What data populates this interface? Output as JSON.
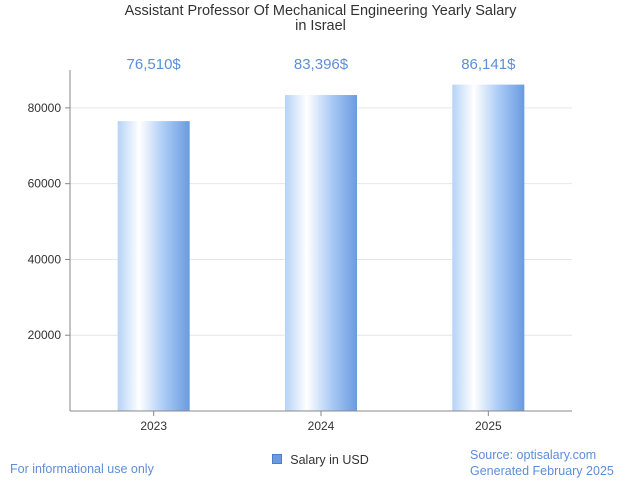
{
  "chart_data": {
    "type": "bar",
    "title_lines": [
      "Assistant Professor Of Mechanical Engineering Yearly Salary",
      "in Israel"
    ],
    "categories": [
      "2023",
      "2024",
      "2025"
    ],
    "series": [
      {
        "name": "Salary in USD",
        "values": [
          76510,
          83396,
          86141
        ]
      }
    ],
    "data_labels": [
      "76,510$",
      "83,396$",
      "86,141$"
    ],
    "y_ticks": [
      20000,
      40000,
      60000,
      80000
    ],
    "ylim": [
      0,
      90000
    ],
    "grid": true,
    "legend_position": "bottom"
  },
  "footer": {
    "note": "For informational use only",
    "source": "Source: optisalary.com",
    "generated": "Generated February 2025"
  },
  "colors": {
    "bar_light": "#ffffff",
    "bar_mid": "#a9caf5",
    "bar_dark": "#6a9be0",
    "data_label": "#5b8fd8",
    "grid": "#e6e6e6",
    "axis": "#888888"
  }
}
